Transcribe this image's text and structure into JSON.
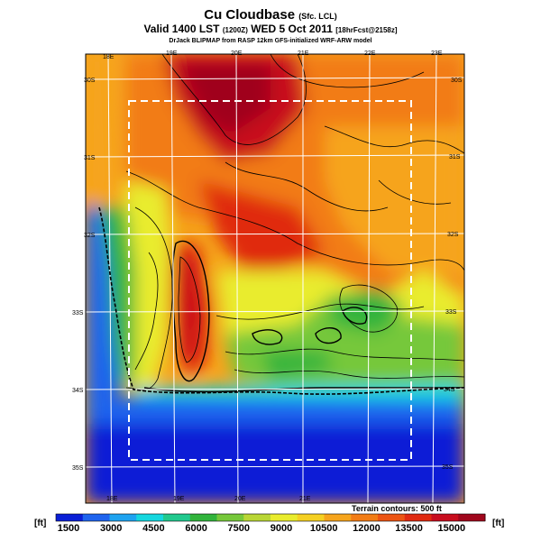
{
  "header": {
    "title": "Cu Cloudbase",
    "title_suffix": "(Sfc. LCL)",
    "subtitle": "Valid 1400 LST",
    "subtitle_run": "(1200Z)",
    "subtitle_date": "WED 5 Oct 2011",
    "subtitle_fcst": "[18hrFcst@2158z]",
    "credit": "DrJack BLIPMAP from RASP 12km GFS-initialized WRF-ARW model"
  },
  "map": {
    "lon_labels_top": [
      "18E",
      "19E",
      "20E",
      "21E",
      "22E",
      "23E"
    ],
    "lon_labels_bottom": [
      "18E",
      "19E",
      "20E",
      "21E"
    ],
    "lat_labels_left": [
      "30S",
      "31S",
      "32S",
      "33S",
      "34S",
      "35S"
    ],
    "lat_labels_right": [
      "30S",
      "31S",
      "32S",
      "33S",
      "34S",
      "35S"
    ],
    "terrain_note": "Terrain contours: 500 ft"
  },
  "colorbar": {
    "unit_left": "[ft]",
    "unit_right": "[ft]",
    "tick_labels": [
      "1500",
      "3000",
      "4500",
      "6000",
      "7500",
      "9000",
      "10500",
      "12000",
      "13500",
      "15000"
    ],
    "colors": [
      "#0a1fd6",
      "#1f64ee",
      "#1ea3f0",
      "#15d7df",
      "#21c98e",
      "#31b43c",
      "#76c83a",
      "#b9d635",
      "#e9ec2d",
      "#f5d022",
      "#f6a41c",
      "#f27c14",
      "#ec5412",
      "#e02a10",
      "#c80d1e",
      "#a0061c"
    ]
  }
}
